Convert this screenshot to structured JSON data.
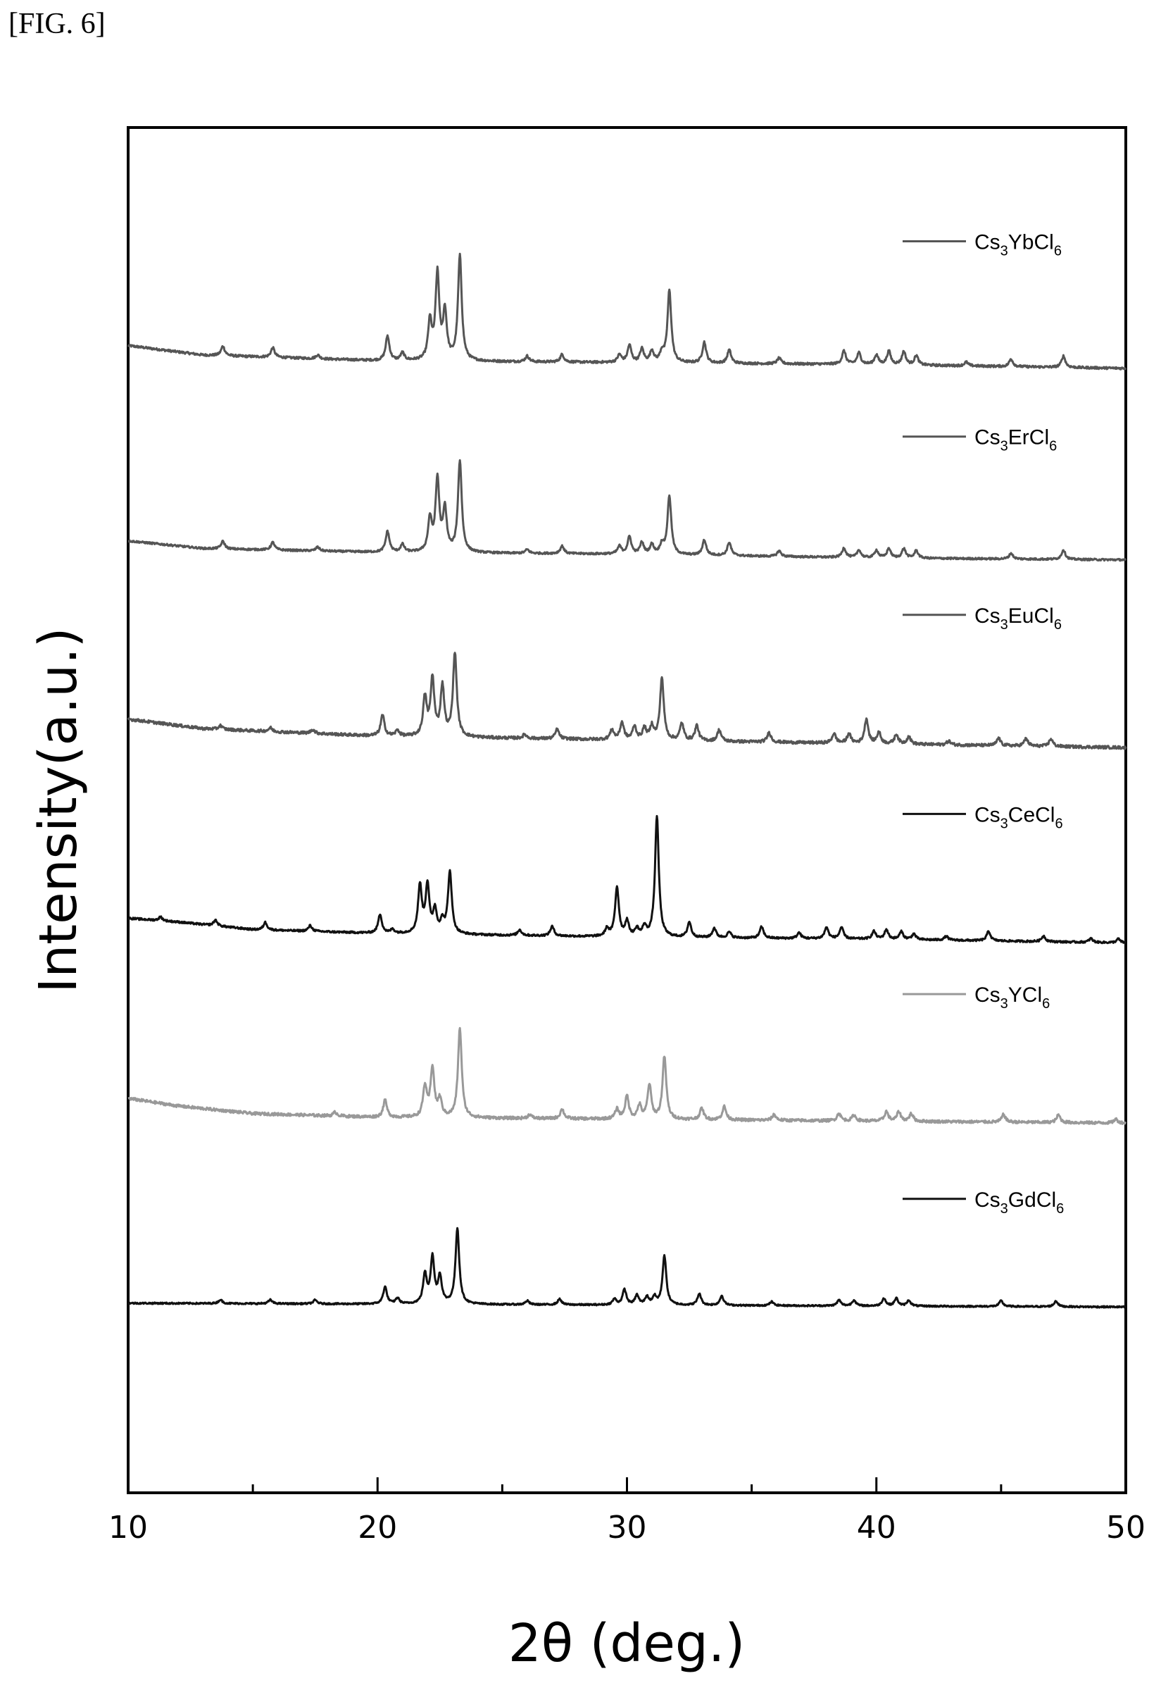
{
  "figure_label": "[FIG. 6]",
  "chart_data": {
    "type": "line",
    "xlabel": "2θ (deg.)",
    "ylabel": "Intensity(a.u.)",
    "xlim": [
      10,
      50
    ],
    "ylim": [
      -1,
      6.2
    ],
    "x_ticks": [
      10,
      20,
      30,
      40,
      50
    ],
    "x_tick_labels": [
      "10",
      "20",
      "30",
      "40",
      "50"
    ],
    "y_ticks_shown": false,
    "grid": false,
    "legend_placement": "per-trace, top-right of each trace",
    "series": [
      {
        "name": "Cs3YbCl6",
        "formula": {
          "a": "Cs",
          "as": "3",
          "b": "YbCl",
          "bs": "6"
        },
        "color": "#555555",
        "noise": 0.012,
        "baseline_pts": [
          [
            10,
            5.05
          ],
          [
            13,
            5.0
          ],
          [
            20,
            4.97
          ],
          [
            30,
            4.96
          ],
          [
            40,
            4.95
          ],
          [
            50,
            4.93
          ]
        ],
        "peaks": [
          [
            13.8,
            0.05
          ],
          [
            15.8,
            0.05
          ],
          [
            17.6,
            0.02
          ],
          [
            20.4,
            0.13
          ],
          [
            21.0,
            0.04
          ],
          [
            22.1,
            0.2
          ],
          [
            22.4,
            0.45
          ],
          [
            22.7,
            0.25
          ],
          [
            23.3,
            0.55
          ],
          [
            26.0,
            0.03
          ],
          [
            27.4,
            0.04
          ],
          [
            29.7,
            0.04
          ],
          [
            30.1,
            0.09
          ],
          [
            30.6,
            0.07
          ],
          [
            31.0,
            0.06
          ],
          [
            31.4,
            0.05
          ],
          [
            31.7,
            0.38
          ],
          [
            33.1,
            0.11
          ],
          [
            34.1,
            0.07
          ],
          [
            36.1,
            0.03
          ],
          [
            38.7,
            0.07
          ],
          [
            39.3,
            0.06
          ],
          [
            40.0,
            0.05
          ],
          [
            40.5,
            0.07
          ],
          [
            41.1,
            0.07
          ],
          [
            41.6,
            0.05
          ],
          [
            43.6,
            0.02
          ],
          [
            45.4,
            0.04
          ],
          [
            47.5,
            0.06
          ]
        ]
      },
      {
        "name": "Cs3ErCl6",
        "formula": {
          "a": "Cs",
          "as": "3",
          "b": "ErCl",
          "bs": "6"
        },
        "color": "#555555",
        "noise": 0.01,
        "baseline_pts": [
          [
            10,
            4.02
          ],
          [
            13,
            3.98
          ],
          [
            20,
            3.96
          ],
          [
            30,
            3.95
          ],
          [
            40,
            3.93
          ],
          [
            50,
            3.92
          ]
        ],
        "peaks": [
          [
            13.8,
            0.04
          ],
          [
            15.8,
            0.04
          ],
          [
            17.6,
            0.02
          ],
          [
            20.4,
            0.11
          ],
          [
            21.0,
            0.04
          ],
          [
            22.1,
            0.17
          ],
          [
            22.4,
            0.38
          ],
          [
            22.7,
            0.22
          ],
          [
            23.3,
            0.48
          ],
          [
            26.0,
            0.02
          ],
          [
            27.4,
            0.04
          ],
          [
            29.7,
            0.04
          ],
          [
            30.1,
            0.09
          ],
          [
            30.6,
            0.06
          ],
          [
            31.0,
            0.05
          ],
          [
            31.4,
            0.05
          ],
          [
            31.7,
            0.31
          ],
          [
            33.1,
            0.08
          ],
          [
            34.1,
            0.07
          ],
          [
            36.1,
            0.03
          ],
          [
            38.7,
            0.05
          ],
          [
            39.3,
            0.04
          ],
          [
            40.0,
            0.04
          ],
          [
            40.5,
            0.05
          ],
          [
            41.1,
            0.05
          ],
          [
            41.6,
            0.04
          ],
          [
            45.4,
            0.03
          ],
          [
            47.5,
            0.05
          ]
        ]
      },
      {
        "name": "Cs3EuCl6",
        "formula": {
          "a": "Cs",
          "as": "3",
          "b": "EuCl",
          "bs": "6"
        },
        "color": "#555555",
        "noise": 0.015,
        "baseline_pts": [
          [
            10,
            3.08
          ],
          [
            13,
            3.03
          ],
          [
            20,
            2.99
          ],
          [
            25,
            2.98
          ],
          [
            30,
            2.97
          ],
          [
            40,
            2.95
          ],
          [
            50,
            2.93
          ]
        ],
        "peaks": [
          [
            13.7,
            0.02
          ],
          [
            15.7,
            0.02
          ],
          [
            17.4,
            0.02
          ],
          [
            20.2,
            0.11
          ],
          [
            20.8,
            0.03
          ],
          [
            21.9,
            0.2
          ],
          [
            22.2,
            0.3
          ],
          [
            22.6,
            0.26
          ],
          [
            23.1,
            0.44
          ],
          [
            25.9,
            0.02
          ],
          [
            27.2,
            0.05
          ],
          [
            29.4,
            0.05
          ],
          [
            29.8,
            0.09
          ],
          [
            30.3,
            0.07
          ],
          [
            30.7,
            0.06
          ],
          [
            31.0,
            0.07
          ],
          [
            31.4,
            0.33
          ],
          [
            32.2,
            0.09
          ],
          [
            32.8,
            0.08
          ],
          [
            33.7,
            0.06
          ],
          [
            35.7,
            0.05
          ],
          [
            38.3,
            0.05
          ],
          [
            38.9,
            0.05
          ],
          [
            39.6,
            0.13
          ],
          [
            40.1,
            0.06
          ],
          [
            40.8,
            0.05
          ],
          [
            41.3,
            0.04
          ],
          [
            42.9,
            0.02
          ],
          [
            44.9,
            0.04
          ],
          [
            46.0,
            0.04
          ],
          [
            47.0,
            0.04
          ]
        ]
      },
      {
        "name": "Cs3CeCl6",
        "formula": {
          "a": "Cs",
          "as": "3",
          "b": "CeCl",
          "bs": "6"
        },
        "color": "#111111",
        "noise": 0.01,
        "baseline_pts": [
          [
            10,
            2.03
          ],
          [
            12,
            2.01
          ],
          [
            15,
            1.97
          ],
          [
            20,
            1.95
          ],
          [
            30,
            1.93
          ],
          [
            40,
            1.92
          ],
          [
            50,
            1.9
          ]
        ],
        "peaks": [
          [
            11.3,
            0.02
          ],
          [
            13.5,
            0.03
          ],
          [
            15.5,
            0.04
          ],
          [
            17.3,
            0.03
          ],
          [
            20.1,
            0.1
          ],
          [
            20.6,
            0.02
          ],
          [
            21.7,
            0.25
          ],
          [
            22.0,
            0.25
          ],
          [
            22.3,
            0.12
          ],
          [
            22.6,
            0.06
          ],
          [
            22.9,
            0.33
          ],
          [
            25.7,
            0.03
          ],
          [
            27.0,
            0.05
          ],
          [
            29.2,
            0.04
          ],
          [
            29.6,
            0.26
          ],
          [
            30.0,
            0.08
          ],
          [
            30.4,
            0.04
          ],
          [
            30.7,
            0.05
          ],
          [
            31.2,
            0.64
          ],
          [
            32.5,
            0.08
          ],
          [
            33.5,
            0.05
          ],
          [
            34.1,
            0.03
          ],
          [
            35.4,
            0.06
          ],
          [
            36.9,
            0.03
          ],
          [
            38.0,
            0.06
          ],
          [
            38.6,
            0.06
          ],
          [
            39.9,
            0.04
          ],
          [
            40.4,
            0.05
          ],
          [
            41.0,
            0.04
          ],
          [
            41.5,
            0.03
          ],
          [
            42.8,
            0.02
          ],
          [
            44.5,
            0.05
          ],
          [
            46.7,
            0.03
          ],
          [
            48.6,
            0.02
          ],
          [
            49.7,
            0.02
          ]
        ]
      },
      {
        "name": "Cs3YCl6",
        "formula": {
          "a": "Cs",
          "as": "3",
          "b": "YCl",
          "bs": "6"
        },
        "color": "#999999",
        "noise": 0.015,
        "baseline_pts": [
          [
            10,
            1.08
          ],
          [
            12,
            1.04
          ],
          [
            15,
            1.0
          ],
          [
            20,
            0.98
          ],
          [
            30,
            0.97
          ],
          [
            40,
            0.96
          ],
          [
            50,
            0.95
          ]
        ],
        "peaks": [
          [
            18.3,
            0.02
          ],
          [
            20.3,
            0.09
          ],
          [
            21.9,
            0.16
          ],
          [
            22.2,
            0.26
          ],
          [
            22.5,
            0.09
          ],
          [
            23.3,
            0.47
          ],
          [
            26.1,
            0.02
          ],
          [
            27.4,
            0.05
          ],
          [
            29.6,
            0.05
          ],
          [
            30.0,
            0.12
          ],
          [
            30.5,
            0.07
          ],
          [
            30.9,
            0.18
          ],
          [
            31.5,
            0.33
          ],
          [
            33.0,
            0.06
          ],
          [
            33.9,
            0.07
          ],
          [
            35.9,
            0.03
          ],
          [
            38.5,
            0.04
          ],
          [
            39.1,
            0.03
          ],
          [
            40.4,
            0.05
          ],
          [
            40.9,
            0.05
          ],
          [
            41.4,
            0.04
          ],
          [
            45.1,
            0.04
          ],
          [
            47.3,
            0.04
          ],
          [
            49.6,
            0.02
          ]
        ]
      },
      {
        "name": "Cs3GdCl6",
        "formula": {
          "a": "Cs",
          "as": "3",
          "b": "GdCl",
          "bs": "6"
        },
        "color": "#111111",
        "noise": 0.008,
        "baseline_pts": [
          [
            10,
            0.0
          ],
          [
            50,
            -0.02
          ]
        ],
        "peaks": [
          [
            13.7,
            0.02
          ],
          [
            15.7,
            0.02
          ],
          [
            17.5,
            0.02
          ],
          [
            20.3,
            0.09
          ],
          [
            20.8,
            0.03
          ],
          [
            21.9,
            0.15
          ],
          [
            22.2,
            0.24
          ],
          [
            22.5,
            0.14
          ],
          [
            23.2,
            0.4
          ],
          [
            26.0,
            0.02
          ],
          [
            27.3,
            0.03
          ],
          [
            29.5,
            0.03
          ],
          [
            29.9,
            0.08
          ],
          [
            30.4,
            0.05
          ],
          [
            30.8,
            0.04
          ],
          [
            31.1,
            0.04
          ],
          [
            31.5,
            0.26
          ],
          [
            32.9,
            0.06
          ],
          [
            33.8,
            0.05
          ],
          [
            35.8,
            0.02
          ],
          [
            38.5,
            0.03
          ],
          [
            39.1,
            0.03
          ],
          [
            40.3,
            0.04
          ],
          [
            40.8,
            0.04
          ],
          [
            41.3,
            0.03
          ],
          [
            45.0,
            0.03
          ],
          [
            47.2,
            0.03
          ]
        ]
      }
    ]
  }
}
